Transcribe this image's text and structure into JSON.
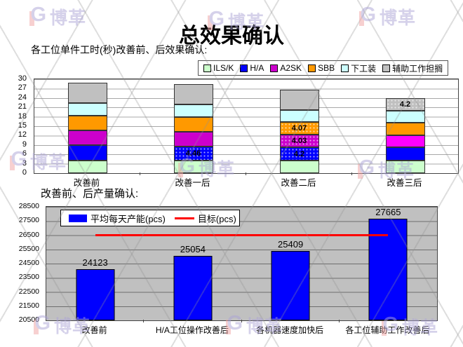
{
  "page": {
    "title": "总效果确认"
  },
  "watermark": {
    "text": "博革",
    "lavender": "#aca4d6",
    "red": "#f0a3a3"
  },
  "chart_data": [
    {
      "type": "bar",
      "stacked": true,
      "title": "各工位单件工时(秒)改善前、后效果确认:",
      "categories": [
        "改善前",
        "改善一后",
        "改善二后",
        "改善三后"
      ],
      "series": [
        {
          "name": "ILS/K",
          "color": "#ccffcc",
          "values": [
            4.0,
            4.0,
            4.0,
            4.0
          ]
        },
        {
          "name": "H/A",
          "color": "#0000ff",
          "values": [
            5.0,
            4.46,
            4.2,
            4.2
          ],
          "labels": [
            null,
            "4.46",
            "4.2",
            null
          ],
          "dotted": [
            false,
            true,
            true,
            false
          ]
        },
        {
          "name": "A2SK",
          "color": "#cc00cc",
          "values": [
            4.7,
            4.7,
            4.03,
            3.8
          ],
          "labels": [
            null,
            null,
            "4.03",
            null
          ],
          "dotted": [
            false,
            false,
            true,
            false
          ],
          "cell_colors": {
            "3": "#ff00ff"
          }
        },
        {
          "name": "SBB",
          "color": "#ff9900",
          "values": [
            4.6,
            4.8,
            4.07,
            4.0
          ],
          "labels": [
            null,
            null,
            "4.07",
            null
          ],
          "dotted": [
            false,
            false,
            true,
            false
          ]
        },
        {
          "name": "下工装",
          "color": "#ccffff",
          "values": [
            4.2,
            4.1,
            3.8,
            3.8
          ]
        },
        {
          "name": "辅助工作担搁",
          "color": "#c0c0c0",
          "values": [
            6.3,
            6.3,
            6.5,
            4.2
          ],
          "labels": [
            null,
            null,
            null,
            "4.2"
          ],
          "dotted": [
            false,
            false,
            false,
            true
          ]
        }
      ],
      "ylim": [
        0,
        30
      ],
      "ytick_step": 3,
      "yticks": [
        0,
        3,
        6,
        9,
        12,
        15,
        18,
        21,
        24,
        27,
        30
      ],
      "grid": true,
      "legend_position": "top-right"
    },
    {
      "type": "bar",
      "title": "改善前、后产量确认:",
      "categories": [
        "改善前",
        "H/A工位操作改善后",
        "各机器速度加快后",
        "各工位辅助工作改善后"
      ],
      "series": [
        {
          "name": "平均每天产能(pcs)",
          "color": "#0000ff",
          "values": [
            24123,
            25054,
            25409,
            27665
          ]
        }
      ],
      "target_line": {
        "name": "目标(pcs)",
        "value": 26500,
        "color": "#ff0000"
      },
      "ylim": [
        20500,
        28500
      ],
      "ytick_step": 1000,
      "yticks": [
        20500,
        21500,
        22500,
        23500,
        24500,
        25500,
        26500,
        27500,
        28500
      ],
      "grid": true,
      "plot_bg": "#c0c0c0",
      "legend_position": "top-left-inside"
    }
  ]
}
